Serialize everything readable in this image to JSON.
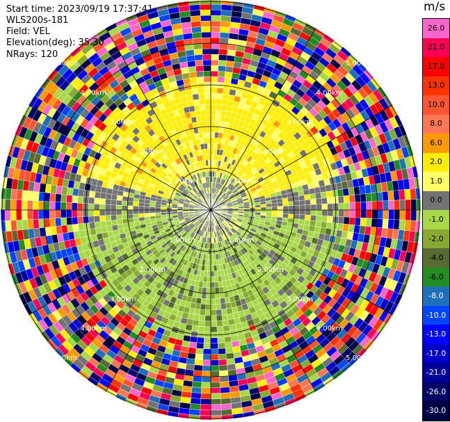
{
  "info": {
    "start_time": "Start time: 2023/09/19 17:37:41",
    "instrument": "WLS200s-181",
    "field": "Field: VEL",
    "elevation": "Elevation(deg): 35.30",
    "nrays": "NRays: 120"
  },
  "colorbar": {
    "unit": "m/s",
    "levels": [
      {
        "label": "26.0",
        "color": "#ff66cc"
      },
      {
        "label": "21.0",
        "color": "#ff0055"
      },
      {
        "label": "17.0",
        "color": "#ff0000"
      },
      {
        "label": "13.0",
        "color": "#ff3300"
      },
      {
        "label": "10.0",
        "color": "#ff5533"
      },
      {
        "label": "8.0",
        "color": "#ff7755"
      },
      {
        "label": "6.0",
        "color": "#ff9900"
      },
      {
        "label": "2.0",
        "color": "#ffee00"
      },
      {
        "label": "1.0",
        "color": "#ffff66"
      },
      {
        "label": "0.0",
        "color": "#737373"
      },
      {
        "label": "-1.0",
        "color": "#a8d84a"
      },
      {
        "label": "-2.0",
        "color": "#88aa33"
      },
      {
        "label": "-4.0",
        "color": "#556b2f"
      },
      {
        "label": "-6.0",
        "color": "#228b22"
      },
      {
        "label": "-8.0",
        "color": "#1e6fb8"
      },
      {
        "label": "-10.0",
        "color": "#0044ff"
      },
      {
        "label": "-13.0",
        "color": "#0000ff"
      },
      {
        "label": "-17.0",
        "color": "#0000cc"
      },
      {
        "label": "-21.0",
        "color": "#000099"
      },
      {
        "label": "-26.0",
        "color": "#000066"
      },
      {
        "label": "-30.0",
        "color": "#000044"
      }
    ]
  },
  "chart_data": {
    "type": "heatmap",
    "projection": "polar-ppi",
    "field": "VEL",
    "nrays": 120,
    "units": "m/s",
    "range_rings": [
      "1.00km",
      "2.00km",
      "3.00km",
      "4.00km",
      "5.00km"
    ],
    "rings_shown_km": [
      1,
      2,
      3,
      4,
      5
    ],
    "spoke_angles_deg": [
      0,
      30,
      60,
      90,
      120,
      150,
      180,
      210,
      240,
      270,
      300,
      330
    ],
    "approx_valid_range_km": 3.2,
    "north_sector_dominant_velocity_ms": 2.0,
    "south_sector_dominant_velocity_ms": -2.0,
    "center_dominant_velocity_ms": 0.0
  }
}
